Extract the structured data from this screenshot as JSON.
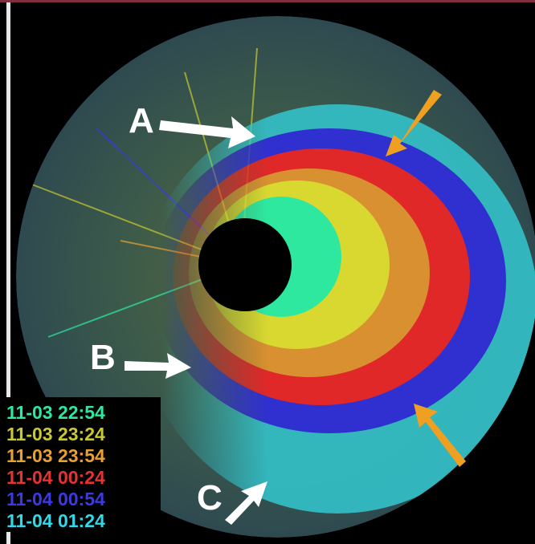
{
  "labels": {
    "a": "A",
    "b": "B",
    "c": "C"
  },
  "legend": [
    {
      "label": "11-03 22:54",
      "color": "#2ee8a0"
    },
    {
      "label": "11-03 23:24",
      "color": "#c8c832"
    },
    {
      "label": "11-03 23:54",
      "color": "#e8a032"
    },
    {
      "label": "11-04 00:24",
      "color": "#e83232"
    },
    {
      "label": "11-04 00:54",
      "color": "#3a3ae0"
    },
    {
      "label": "11-04 01:24",
      "color": "#32d8e8"
    }
  ]
}
